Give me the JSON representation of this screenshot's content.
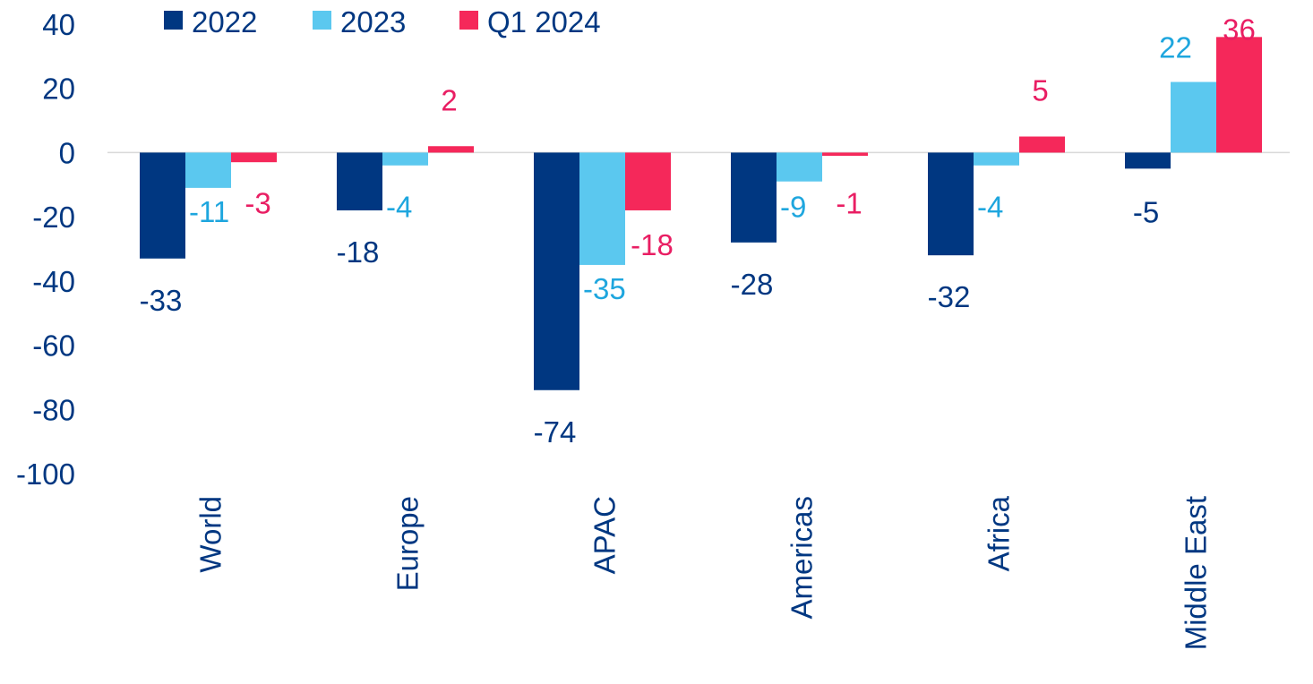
{
  "colors": {
    "series_2022": "#003781",
    "series_2023": "#5bc8ef",
    "series_q1_2024": "#f5285a",
    "axis_text": "#003781",
    "label_2023": "#1ea6de",
    "label_q1_2024": "#e91e63",
    "zero_line": "#d9d9d9"
  },
  "chart_data": {
    "type": "bar",
    "title": "",
    "xlabel": "",
    "ylabel": "",
    "ylim": [
      -100,
      40
    ],
    "y_ticks": [
      "40",
      "20",
      "0",
      "-20",
      "-40",
      "-60",
      "-80",
      "-100"
    ],
    "y_tick_values": [
      40,
      20,
      0,
      -20,
      -40,
      -60,
      -80,
      -100
    ],
    "grid": false,
    "legend_position": "top",
    "categories": [
      "World",
      "Europe",
      "APAC",
      "Americas",
      "Africa",
      "Middle East"
    ],
    "series": [
      {
        "name": "2022",
        "values": [
          -33,
          -18,
          -74,
          -28,
          -32,
          -5
        ],
        "labels": [
          "-33",
          "-18",
          "-74",
          "-28",
          "-32",
          "-5"
        ]
      },
      {
        "name": "2023",
        "values": [
          -11,
          -4,
          -35,
          -9,
          -4,
          22
        ],
        "labels": [
          "-11",
          "-4",
          "-35",
          "-9",
          "-4",
          "22"
        ]
      },
      {
        "name": "Q1 2024",
        "values": [
          -3,
          2,
          -18,
          -1,
          5,
          36
        ],
        "labels": [
          "-3",
          "2",
          "-18",
          "-1",
          "5",
          "36"
        ]
      }
    ]
  }
}
